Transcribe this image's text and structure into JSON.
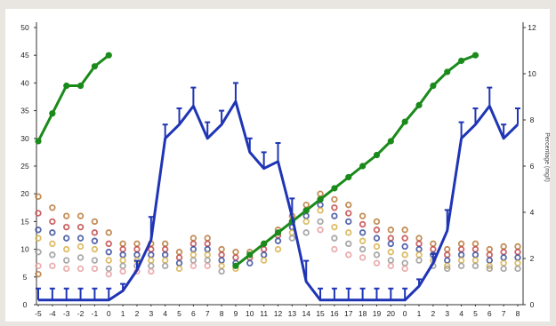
{
  "chart_data": {
    "type": "line",
    "title": "",
    "xlabel": "",
    "ylabel": "",
    "y2label": "Percentage (mg/l)",
    "ylim": [
      0,
      50
    ],
    "y2lim": [
      0,
      12
    ],
    "yticks": [
      0,
      5,
      10,
      15,
      20,
      25,
      30,
      35,
      40,
      45,
      50
    ],
    "y2ticks": [
      0,
      2,
      4,
      6,
      8,
      10,
      12
    ],
    "x_labels": [
      "-5",
      "-4",
      "-3",
      "-2",
      "-1",
      "0",
      "1",
      "2",
      "3",
      "4",
      "5",
      "6",
      "7",
      "8",
      "9",
      "10",
      "11",
      "12",
      "13",
      "14",
      "15",
      "16",
      "17",
      "18",
      "19",
      "20",
      "0",
      "1",
      "2",
      "3",
      "4",
      "5",
      "6",
      "7",
      "8"
    ],
    "series": [
      {
        "name": "",
        "color": "#1a8a1a",
        "axis": "left",
        "style": "line-markers",
        "points": [
          {
            "i": 0,
            "v": 29.5
          },
          {
            "i": 1,
            "v": 34.5
          },
          {
            "i": 2,
            "v": 39.5
          },
          {
            "i": 3,
            "v": 39.5
          },
          {
            "i": 4,
            "v": 43
          },
          {
            "i": 5,
            "v": 45
          },
          {
            "i": 14,
            "v": 7
          },
          {
            "i": 15,
            "v": 9
          },
          {
            "i": 16,
            "v": 11
          },
          {
            "i": 17,
            "v": 13
          },
          {
            "i": 18,
            "v": 15
          },
          {
            "i": 19,
            "v": 17
          },
          {
            "i": 20,
            "v": 19
          },
          {
            "i": 21,
            "v": 21
          },
          {
            "i": 22,
            "v": 23
          },
          {
            "i": 23,
            "v": 25
          },
          {
            "i": 24,
            "v": 27
          },
          {
            "i": 25,
            "v": 29.5
          },
          {
            "i": 26,
            "v": 33
          },
          {
            "i": 27,
            "v": 36
          },
          {
            "i": 28,
            "v": 39.5
          },
          {
            "i": 29,
            "v": 42
          },
          {
            "i": 30,
            "v": 44
          },
          {
            "i": 31,
            "v": 45
          }
        ]
      },
      {
        "name": "",
        "color": "#1f35b5",
        "axis": "right",
        "style": "line-errorbars",
        "points": [
          {
            "i": 0,
            "v": 0.2,
            "e": 0.5
          },
          {
            "i": 1,
            "v": 0.2,
            "e": 0.5
          },
          {
            "i": 2,
            "v": 0.2,
            "e": 0.5
          },
          {
            "i": 3,
            "v": 0.2,
            "e": 0.5
          },
          {
            "i": 4,
            "v": 0.2,
            "e": 0.5
          },
          {
            "i": 5,
            "v": 0.2,
            "e": 0.5
          },
          {
            "i": 6,
            "v": 0.6,
            "e": 0.3
          },
          {
            "i": 7,
            "v": 1.5,
            "e": 0.4
          },
          {
            "i": 8,
            "v": 2.8,
            "e": 1.0
          },
          {
            "i": 9,
            "v": 7.2,
            "e": 0.6
          },
          {
            "i": 10,
            "v": 7.8,
            "e": 0.7
          },
          {
            "i": 11,
            "v": 8.6,
            "e": 0.8
          },
          {
            "i": 12,
            "v": 7.2,
            "e": 0.7
          },
          {
            "i": 13,
            "v": 7.8,
            "e": 0.6
          },
          {
            "i": 14,
            "v": 8.8,
            "e": 0.8
          },
          {
            "i": 15,
            "v": 6.6,
            "e": 0.6
          },
          {
            "i": 16,
            "v": 5.9,
            "e": 0.7
          },
          {
            "i": 17,
            "v": 6.2,
            "e": 0.8
          },
          {
            "i": 18,
            "v": 3.8,
            "e": 0.8
          },
          {
            "i": 19,
            "v": 1.0,
            "e": 0.9
          },
          {
            "i": 20,
            "v": 0.2,
            "e": 0.5
          },
          {
            "i": 21,
            "v": 0.2,
            "e": 0.5
          },
          {
            "i": 22,
            "v": 0.2,
            "e": 0.5
          },
          {
            "i": 23,
            "v": 0.2,
            "e": 0.5
          },
          {
            "i": 24,
            "v": 0.2,
            "e": 0.5
          },
          {
            "i": 25,
            "v": 0.2,
            "e": 0.5
          },
          {
            "i": 26,
            "v": 0.2,
            "e": 0.5
          },
          {
            "i": 27,
            "v": 0.8,
            "e": 0.3
          },
          {
            "i": 28,
            "v": 1.8,
            "e": 0.4
          },
          {
            "i": 29,
            "v": 3.2,
            "e": 0.9
          },
          {
            "i": 30,
            "v": 7.2,
            "e": 0.7
          },
          {
            "i": 31,
            "v": 7.8,
            "e": 0.7
          },
          {
            "i": 32,
            "v": 8.6,
            "e": 0.8
          },
          {
            "i": 33,
            "v": 7.2,
            "e": 0.6
          },
          {
            "i": 34,
            "v": 7.8,
            "e": 0.7
          }
        ]
      }
    ],
    "scatter_rings": {
      "colors": [
        "#b87a3a",
        "#c24a4a",
        "#3b4d9c",
        "#d8b24e",
        "#9a9a9a",
        "#e8a0a0"
      ],
      "note_values_left_axis": [
        [
          19.5,
          16.5,
          13.5,
          12,
          9.5,
          7,
          5.5
        ],
        [
          17.5,
          15,
          13,
          11,
          9,
          7
        ],
        [
          16,
          14,
          12,
          10,
          8,
          6.5
        ],
        [
          16,
          14,
          12,
          10.5,
          8.5,
          6.5
        ],
        [
          15,
          13,
          11.5,
          10,
          8,
          6.5
        ],
        [
          13,
          11,
          9.5,
          8,
          6.5,
          5.5
        ],
        [
          11,
          10,
          9,
          8,
          7,
          6
        ],
        [
          11,
          10,
          9,
          8,
          7,
          6
        ],
        [
          11,
          10,
          9,
          8,
          7,
          6
        ],
        [
          11,
          10,
          9,
          8,
          7
        ],
        [
          9.5,
          8.5,
          7.5,
          6.5
        ],
        [
          12,
          11,
          10,
          9,
          8,
          7
        ],
        [
          12,
          11,
          10,
          9,
          8,
          7
        ],
        [
          10,
          9,
          8,
          7,
          6
        ],
        [
          9.5,
          8.5,
          7.5,
          6.5
        ],
        [
          9.5,
          8.5,
          7.5
        ],
        [
          11,
          10,
          9,
          8
        ],
        [
          13.5,
          12.5,
          11.5,
          10
        ],
        [
          16,
          15,
          14,
          13,
          12
        ],
        [
          18,
          17,
          16,
          15,
          13
        ],
        [
          20,
          19,
          18,
          17,
          15,
          13.5
        ],
        [
          19,
          17.5,
          16,
          14,
          12,
          10
        ],
        [
          18,
          16.5,
          15,
          13,
          11,
          9
        ],
        [
          16,
          14.5,
          13,
          11.5,
          10,
          8.5
        ],
        [
          15,
          13.5,
          12,
          10.5,
          9,
          7.5
        ],
        [
          13.5,
          12,
          11,
          9.5,
          8,
          7
        ],
        [
          13.5,
          12,
          10.5,
          9,
          7.5,
          6.5
        ],
        [
          12,
          11,
          10,
          9,
          8
        ],
        [
          11,
          10,
          9,
          8,
          7
        ],
        [
          10,
          9,
          8,
          7,
          6.5
        ],
        [
          11,
          10,
          9,
          8,
          7
        ],
        [
          11,
          10,
          9,
          8,
          7
        ],
        [
          10,
          9,
          8,
          7,
          6.5
        ],
        [
          10.5,
          9.5,
          8.5,
          7.5,
          6.5
        ],
        [
          10.5,
          9.5,
          8.5,
          7.5,
          6.5
        ]
      ]
    },
    "grid": false,
    "legend": "none"
  }
}
